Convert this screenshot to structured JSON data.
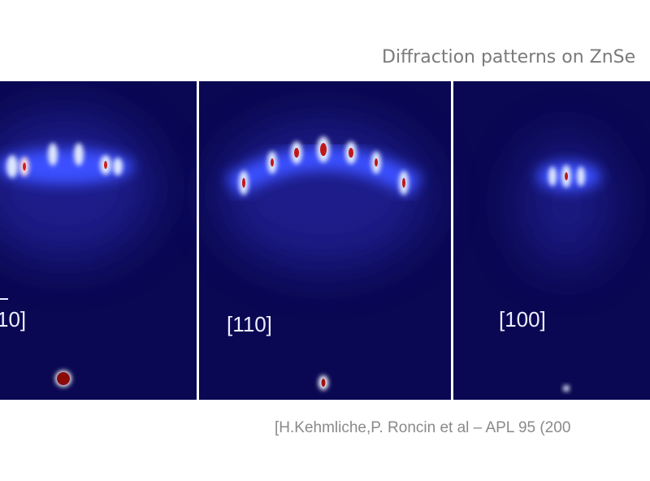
{
  "slide": {
    "title": "Diffraction patterns on ZnSe",
    "panels": [
      {
        "label": "10]"
      },
      {
        "label": "[110]"
      },
      {
        "label": "[100]"
      }
    ],
    "citation": "[H.Kehmliche,P. Roncin et al – APL 95 (200"
  }
}
